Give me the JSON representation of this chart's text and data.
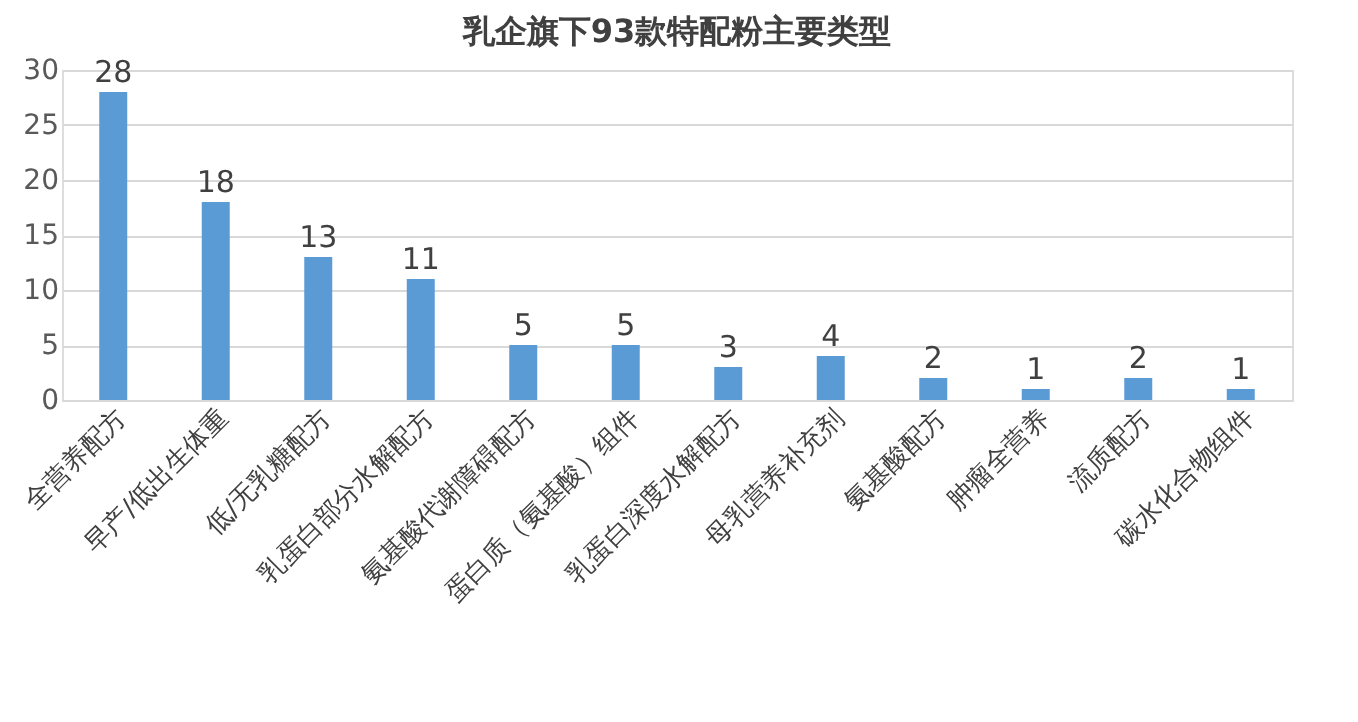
{
  "chart_data": {
    "type": "bar",
    "title": "乳企旗下93款特配粉主要类型",
    "categories": [
      "全营养配方",
      "早产/低出生体重",
      "低/无乳糖配方",
      "乳蛋白部分水解配方",
      "氨基酸代谢障碍配方",
      "蛋白质（氨基酸）组件",
      "乳蛋白深度水解配方",
      "母乳营养补充剂",
      "氨基酸配方",
      "肿瘤全营养",
      "流质配方",
      "碳水化合物组件"
    ],
    "values": [
      28,
      18,
      13,
      11,
      5,
      5,
      3,
      4,
      2,
      1,
      2,
      1
    ],
    "color": "#5b9bd5",
    "ylim": [
      0,
      30
    ],
    "yticks": [
      0,
      5,
      10,
      15,
      20,
      25,
      30
    ],
    "grid": "y",
    "data_labels": true
  }
}
